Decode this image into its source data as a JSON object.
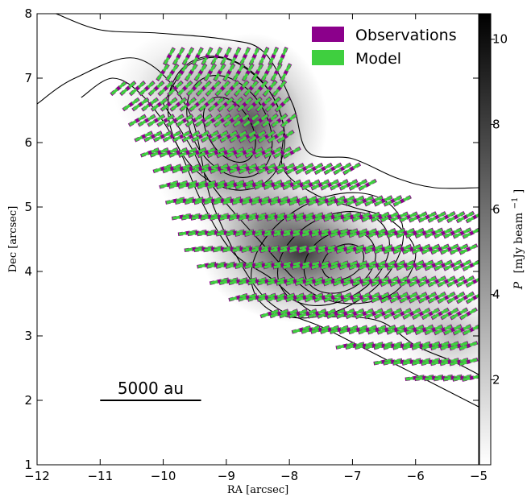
{
  "chart_data": {
    "type": "polarization-vector-map",
    "xlabel": "RA [arcsec]",
    "ylabel": "Dec [arcsec]",
    "xlim": [
      -12,
      -5
    ],
    "ylim": [
      1,
      8
    ],
    "x_ticks": [
      "−12",
      "−11",
      "−10",
      "−9",
      "−8",
      "−7",
      "−6",
      "−5"
    ],
    "y_ticks": [
      "1",
      "2",
      "3",
      "4",
      "5",
      "6",
      "7",
      "8"
    ],
    "colorbar": {
      "label_symbol": "P",
      "label_units": "[mJy beam",
      "label_exp": "−1",
      "label_close": "]",
      "range": [
        0,
        10.6
      ],
      "ticks": [
        "2",
        "4",
        "6",
        "8",
        "10"
      ],
      "colormap": "gray_r"
    },
    "legend": {
      "placement": "top-right",
      "entries": [
        {
          "name": "Observations",
          "color": "#8b008b"
        },
        {
          "name": "Model",
          "color": "#3fcf3f"
        }
      ]
    },
    "scalebar": {
      "label": "5000 au",
      "x_start": -11.0,
      "x_end": -9.4,
      "y": 2.0
    },
    "image_peaks": [
      {
        "ra": -8.6,
        "dec": 6.3,
        "amplitude": 9.0
      },
      {
        "ra": -7.8,
        "dec": 4.3,
        "amplitude": 10.6
      }
    ],
    "contour_levels": [
      {
        "cx": -8.95,
        "cy": 6.2,
        "rx": 0.35,
        "ry": 0.55
      },
      {
        "cx": -8.95,
        "cy": 6.25,
        "rx": 0.6,
        "ry": 0.85
      },
      {
        "cx": -9.0,
        "cy": 6.3,
        "rx": 0.85,
        "ry": 1.1
      },
      {
        "cx": -7.15,
        "cy": 4.15,
        "rx": 0.35,
        "ry": 0.25
      },
      {
        "cx": -7.2,
        "cy": 4.15,
        "rx": 0.6,
        "ry": 0.45
      },
      {
        "cx": -7.3,
        "cy": 4.2,
        "rx": 0.95,
        "ry": 0.65
      },
      {
        "cx": -7.4,
        "cy": 4.25,
        "rx": 1.3,
        "ry": 0.85
      }
    ],
    "outer_contours": [
      {
        "name": "contour-outer",
        "points": [
          [
            -12.0,
            6.6
          ],
          [
            -11.4,
            7.0
          ],
          [
            -10.4,
            7.3
          ],
          [
            -9.6,
            6.5
          ],
          [
            -9.2,
            5.0
          ],
          [
            -8.4,
            3.6
          ],
          [
            -7.4,
            3.1
          ],
          [
            -6.2,
            2.5
          ],
          [
            -5.0,
            1.9
          ]
        ]
      },
      {
        "name": "contour-upper",
        "points": [
          [
            -11.7,
            8.0
          ],
          [
            -11.0,
            7.75
          ],
          [
            -10.1,
            7.7
          ],
          [
            -9.0,
            7.6
          ],
          [
            -8.4,
            7.4
          ],
          [
            -7.95,
            6.6
          ],
          [
            -7.7,
            5.85
          ],
          [
            -7.0,
            5.75
          ],
          [
            -6.3,
            5.45
          ],
          [
            -5.7,
            5.3
          ],
          [
            -5.0,
            5.3
          ]
        ]
      },
      {
        "name": "contour-lower",
        "points": [
          [
            -5.0,
            2.4
          ],
          [
            -5.4,
            2.6
          ],
          [
            -6.0,
            2.85
          ],
          [
            -6.5,
            3.2
          ],
          [
            -7.0,
            3.3
          ],
          [
            -7.6,
            3.35
          ],
          [
            -8.3,
            3.9
          ],
          [
            -8.9,
            4.3
          ],
          [
            -9.4,
            5.1
          ],
          [
            -9.8,
            6.0
          ],
          [
            -10.3,
            6.7
          ],
          [
            -10.8,
            7.0
          ],
          [
            -11.3,
            6.7
          ]
        ]
      },
      {
        "name": "contour-mid",
        "points": [
          [
            -10.0,
            6.6
          ],
          [
            -9.6,
            7.2
          ],
          [
            -9.0,
            7.3
          ],
          [
            -8.4,
            6.9
          ],
          [
            -8.1,
            6.3
          ],
          [
            -8.1,
            5.6
          ],
          [
            -7.6,
            5.2
          ],
          [
            -7.0,
            5.0
          ],
          [
            -6.4,
            4.8
          ],
          [
            -6.0,
            4.3
          ],
          [
            -6.3,
            3.7
          ],
          [
            -7.0,
            3.5
          ],
          [
            -7.7,
            3.7
          ],
          [
            -8.4,
            4.4
          ],
          [
            -9.2,
            5.3
          ],
          [
            -9.6,
            6.0
          ],
          [
            -10.0,
            6.6
          ]
        ]
      }
    ],
    "vectors": {
      "rows": [
        {
          "dec": 7.35,
          "ra_start": -9.9,
          "ra_end": -8.1,
          "step": 0.15,
          "angle": 60
        },
        {
          "dec": 7.1,
          "ra_start": -10.0,
          "ra_end": -8.05,
          "step": 0.15,
          "angle": 55
        },
        {
          "dec": 6.85,
          "ra_start": -10.7,
          "ra_end": -8.05,
          "step": 0.15,
          "angle": 40
        },
        {
          "dec": 6.6,
          "ra_start": -10.5,
          "ra_end": -8.05,
          "step": 0.15,
          "angle": 35
        },
        {
          "dec": 6.35,
          "ra_start": -10.4,
          "ra_end": -8.0,
          "step": 0.15,
          "angle": 30
        },
        {
          "dec": 6.1,
          "ra_start": -10.3,
          "ra_end": -7.95,
          "step": 0.15,
          "angle": 25
        },
        {
          "dec": 5.85,
          "ra_start": -10.2,
          "ra_end": -7.85,
          "step": 0.15,
          "angle": 20
        },
        {
          "dec": 5.6,
          "ra_start": -10.0,
          "ra_end": -6.9,
          "step": 0.15,
          "angle": 18
        },
        {
          "dec": 5.35,
          "ra_start": -9.9,
          "ra_end": -6.7,
          "step": 0.15,
          "angle": 15
        },
        {
          "dec": 5.1,
          "ra_start": -9.8,
          "ra_end": -6.1,
          "step": 0.15,
          "angle": 12
        },
        {
          "dec": 4.85,
          "ra_start": -9.7,
          "ra_end": -5.05,
          "step": 0.15,
          "angle": 10
        },
        {
          "dec": 4.6,
          "ra_start": -9.6,
          "ra_end": -5.05,
          "step": 0.15,
          "angle": 8
        },
        {
          "dec": 4.35,
          "ra_start": -9.5,
          "ra_end": -5.05,
          "step": 0.15,
          "angle": 8
        },
        {
          "dec": 4.1,
          "ra_start": -9.3,
          "ra_end": -5.05,
          "step": 0.15,
          "angle": 10
        },
        {
          "dec": 3.85,
          "ra_start": -9.1,
          "ra_end": -5.05,
          "step": 0.15,
          "angle": 12
        },
        {
          "dec": 3.6,
          "ra_start": -8.8,
          "ra_end": -5.05,
          "step": 0.15,
          "angle": 15
        },
        {
          "dec": 3.35,
          "ra_start": -8.3,
          "ra_end": -5.05,
          "step": 0.15,
          "angle": 18
        },
        {
          "dec": 3.1,
          "ra_start": -7.8,
          "ra_end": -5.05,
          "step": 0.15,
          "angle": 15
        },
        {
          "dec": 2.85,
          "ra_start": -7.1,
          "ra_end": -5.05,
          "step": 0.15,
          "angle": 12
        },
        {
          "dec": 2.6,
          "ra_start": -6.5,
          "ra_end": -5.05,
          "step": 0.15,
          "angle": 10
        },
        {
          "dec": 2.35,
          "ra_start": -6.0,
          "ra_end": -5.05,
          "step": 0.15,
          "angle": 8
        }
      ]
    }
  }
}
